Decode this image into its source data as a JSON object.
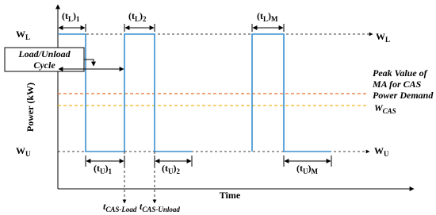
{
  "levels": {
    "w_l_left": {
      "main": "W",
      "sub": "L"
    },
    "w_l_right": {
      "main": "W",
      "sub": "L"
    },
    "w_u_left": {
      "main": "W",
      "sub": "U"
    },
    "w_u_right": {
      "main": "W",
      "sub": "U"
    },
    "w_cas": {
      "main": "W",
      "sub": "CAS"
    }
  },
  "durations": {
    "tl1": {
      "main": "(t",
      "sub1": "L",
      "close": ")",
      "sub2": "1"
    },
    "tl2": {
      "main": "(t",
      "sub1": "L",
      "close": ")",
      "sub2": "2"
    },
    "tlm": {
      "main": "(t",
      "sub1": "L",
      "close": ")",
      "sub2": "M"
    },
    "tu1": {
      "main": "(t",
      "sub1": "U",
      "close": ")",
      "sub2": "1"
    },
    "tu2": {
      "main": "(t",
      "sub1": "U",
      "close": ")",
      "sub2": "2"
    },
    "tum": {
      "main": "(t",
      "sub1": "U",
      "close": ")",
      "sub2": "M"
    }
  },
  "cycle": [
    "Load/Unload",
    "Cycle"
  ],
  "peak": [
    "Peak Value of",
    "MA for CAS",
    "Power Demand"
  ],
  "axes": {
    "y_label": "Power (kW)",
    "x_label": "Time"
  },
  "times": {
    "load": {
      "main": "t",
      "sub": "CAS-Load"
    },
    "unload": {
      "main": "t",
      "sub": "CAS-Unload"
    }
  }
}
